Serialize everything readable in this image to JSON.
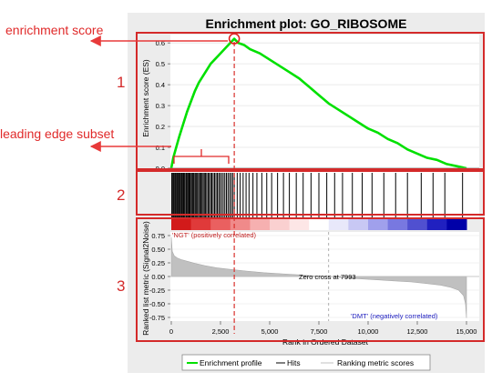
{
  "chart_data": {
    "type": "line",
    "title": "Enrichment plot: GO_RIBOSOME",
    "annotations": {
      "enrichment_score": "enrichment score",
      "leading_edge_subset": "leading edge subset",
      "panel_numbers": [
        "1",
        "2",
        "3"
      ],
      "zero_cross": "Zero cross at 7993",
      "ngt_label": "'NGT' (positively correlated)",
      "dmt_label": "'DMT' (negatively correlated)"
    },
    "xlabel": "Rank in Ordered Dataset",
    "xlim": [
      0,
      15500
    ],
    "x_ticks": [
      0,
      2500,
      5000,
      7500,
      10000,
      12500,
      15000
    ],
    "x_tick_labels": [
      "0",
      "2,500",
      "5,000",
      "7,500",
      "10,000",
      "12,500",
      "15,000"
    ],
    "legend": {
      "placement": "bottom",
      "entries": [
        {
          "label": "Enrichment profile",
          "color": "#00e000",
          "style": "line"
        },
        {
          "label": "Hits",
          "color": "#000000",
          "style": "line"
        },
        {
          "label": "Ranking metric scores",
          "color": "#c0c0c0",
          "style": "line"
        }
      ]
    },
    "enrichment_panel": {
      "ylabel": "Enrichment score (ES)",
      "ylim": [
        0,
        0.64
      ],
      "y_ticks": [
        0.0,
        0.1,
        0.2,
        0.3,
        0.4,
        0.5,
        0.6
      ],
      "y_tick_labels": [
        "0.0",
        "0.1",
        "0.2",
        "0.3",
        "0.4",
        "0.5",
        "0.6"
      ],
      "peak": {
        "x": 3200,
        "y": 0.62
      },
      "series": [
        {
          "color": "#00e000",
          "x": [
            0,
            100,
            250,
            400,
            600,
            800,
            1000,
            1200,
            1400,
            1600,
            1800,
            2000,
            2200,
            2400,
            2600,
            2800,
            3000,
            3200,
            3400,
            3700,
            4000,
            4500,
            5000,
            5500,
            6000,
            6500,
            7000,
            7500,
            8000,
            8500,
            9000,
            9500,
            10000,
            10500,
            11000,
            11500,
            12000,
            12500,
            13000,
            13500,
            14000,
            14500,
            15000
          ],
          "y": [
            0.0,
            0.05,
            0.1,
            0.15,
            0.21,
            0.27,
            0.32,
            0.37,
            0.41,
            0.44,
            0.47,
            0.5,
            0.52,
            0.54,
            0.56,
            0.58,
            0.6,
            0.62,
            0.6,
            0.59,
            0.57,
            0.55,
            0.52,
            0.49,
            0.46,
            0.43,
            0.39,
            0.35,
            0.31,
            0.28,
            0.25,
            0.22,
            0.19,
            0.17,
            0.14,
            0.12,
            0.09,
            0.07,
            0.05,
            0.04,
            0.02,
            0.01,
            0.0
          ]
        }
      ]
    },
    "hits_panel": {
      "hit_positions": [
        20,
        60,
        110,
        150,
        200,
        240,
        290,
        330,
        380,
        420,
        470,
        520,
        560,
        610,
        650,
        700,
        760,
        800,
        850,
        900,
        950,
        1010,
        1060,
        1110,
        1160,
        1220,
        1280,
        1330,
        1390,
        1450,
        1500,
        1560,
        1620,
        1680,
        1740,
        1800,
        1870,
        1930,
        2000,
        2060,
        2130,
        2200,
        2270,
        2340,
        2410,
        2480,
        2560,
        2640,
        2720,
        2800,
        2880,
        2960,
        3040,
        3120,
        3200,
        3350,
        3500,
        3650,
        3800,
        3950,
        4150,
        4350,
        4600,
        4850,
        5100,
        5400,
        5700,
        6000,
        6350,
        6700,
        7100,
        7500,
        7900,
        8300,
        8700,
        9200,
        9700,
        10200,
        10800,
        11400,
        12000,
        12700,
        13300,
        13900,
        14800
      ]
    },
    "heatmap_bar": {
      "colors": [
        "#d21a1a",
        "#e03a3a",
        "#ea6060",
        "#f08a8a",
        "#f6b0b0",
        "#fad0d0",
        "#fde6e6",
        "#ffffff",
        "#e8e8fa",
        "#c8c8f4",
        "#a0a0ec",
        "#7878e0",
        "#5050d0",
        "#2020c0",
        "#0000a8"
      ]
    },
    "metric_panel": {
      "ylabel": "Ranked list metric (Signal2Noise)",
      "ylim": [
        -0.8,
        0.8
      ],
      "y_ticks": [
        0.75,
        0.5,
        0.25,
        0.0,
        -0.25,
        -0.5,
        -0.75
      ],
      "y_tick_labels": [
        "0.75",
        "0.50",
        "0.25",
        "0.00",
        "-0.25",
        "-0.50",
        "-0.75"
      ],
      "zero_cross": 7993,
      "series": [
        {
          "color": "#c0c0c0",
          "x": [
            0,
            50,
            150,
            300,
            500,
            800,
            1200,
            1700,
            2300,
            3000,
            3800,
            4700,
            5600,
            6500,
            7300,
            7993,
            8700,
            9500,
            10400,
            11300,
            12200,
            13000,
            13700,
            14200,
            14600,
            14850,
            14950,
            15000
          ],
          "y": [
            0.72,
            0.46,
            0.38,
            0.34,
            0.31,
            0.28,
            0.24,
            0.2,
            0.16,
            0.13,
            0.1,
            0.07,
            0.05,
            0.03,
            0.01,
            0.0,
            -0.02,
            -0.04,
            -0.06,
            -0.08,
            -0.1,
            -0.13,
            -0.16,
            -0.2,
            -0.25,
            -0.35,
            -0.5,
            -0.76
          ]
        }
      ]
    }
  }
}
